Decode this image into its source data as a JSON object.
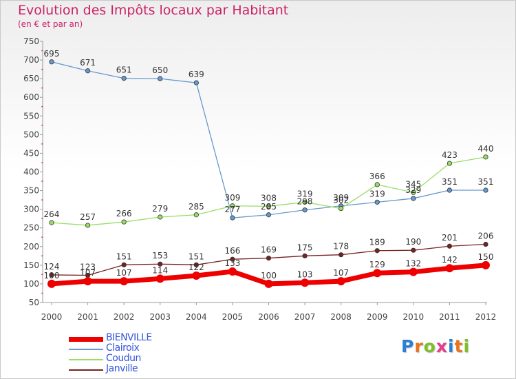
{
  "title": "Evolution des Impôts locaux par Habitant",
  "subtitle": "(en € et par an)",
  "logo": {
    "letters": [
      "P",
      "r",
      "o",
      "x",
      "i",
      "t",
      "i"
    ],
    "colors": [
      "#2b7fd4",
      "#e8731a",
      "#7cbf2a",
      "#e83a8a",
      "#2b7fd4",
      "#e8731a",
      "#7cbf2a"
    ]
  },
  "chart_data": {
    "type": "line",
    "categories": [
      "2000",
      "2001",
      "2002",
      "2003",
      "2004",
      "2005",
      "2006",
      "2007",
      "2008",
      "2009",
      "2010",
      "2011",
      "2012"
    ],
    "ylim": [
      50,
      750
    ],
    "yticks": [
      50,
      100,
      150,
      200,
      250,
      300,
      350,
      400,
      450,
      500,
      550,
      600,
      650,
      700,
      750
    ],
    "grid": false,
    "legend_position": "bottom-left",
    "series": [
      {
        "name": "BIENVILLE",
        "color": "#ee0000",
        "values": [
          100,
          107,
          107,
          114,
          122,
          133,
          100,
          103,
          107,
          129,
          132,
          142,
          150
        ]
      },
      {
        "name": "Clairoix",
        "color": "#6699cc",
        "values": [
          695,
          671,
          651,
          650,
          639,
          277,
          285,
          298,
          309,
          319,
          329,
          351,
          351
        ]
      },
      {
        "name": "Coudun",
        "color": "#99dd66",
        "values": [
          264,
          257,
          266,
          279,
          285,
          309,
          308,
          319,
          302,
          366,
          345,
          423,
          440
        ]
      },
      {
        "name": "Janville",
        "color": "#772222",
        "values": [
          124,
          123,
          151,
          153,
          151,
          166,
          169,
          175,
          178,
          189,
          190,
          201,
          206
        ]
      }
    ]
  }
}
